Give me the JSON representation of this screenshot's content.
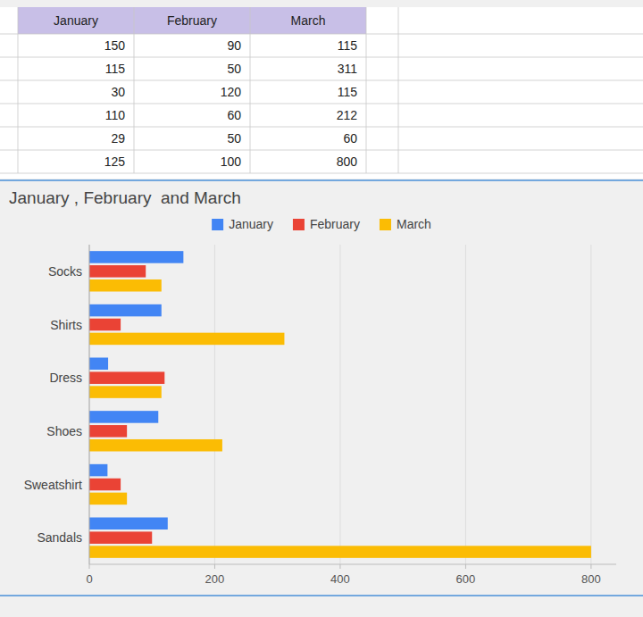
{
  "chart_data": {
    "type": "bar",
    "orientation": "horizontal",
    "title": "January , February  and March",
    "categories": [
      "Socks",
      "Shirts",
      "Dress",
      "Shoes",
      "Sweatshirt",
      "Sandals"
    ],
    "series": [
      {
        "name": "January",
        "color": "#4285F4",
        "values": [
          150,
          115,
          30,
          110,
          29,
          125
        ]
      },
      {
        "name": "February",
        "color": "#EA4335",
        "values": [
          90,
          50,
          120,
          60,
          50,
          100
        ]
      },
      {
        "name": "March",
        "color": "#FBBC04",
        "values": [
          115,
          311,
          115,
          212,
          60,
          800
        ]
      }
    ],
    "xlim": [
      0,
      840
    ],
    "xticks": [
      0,
      200,
      400,
      600,
      800
    ],
    "grid": true,
    "legend": "top"
  }
}
